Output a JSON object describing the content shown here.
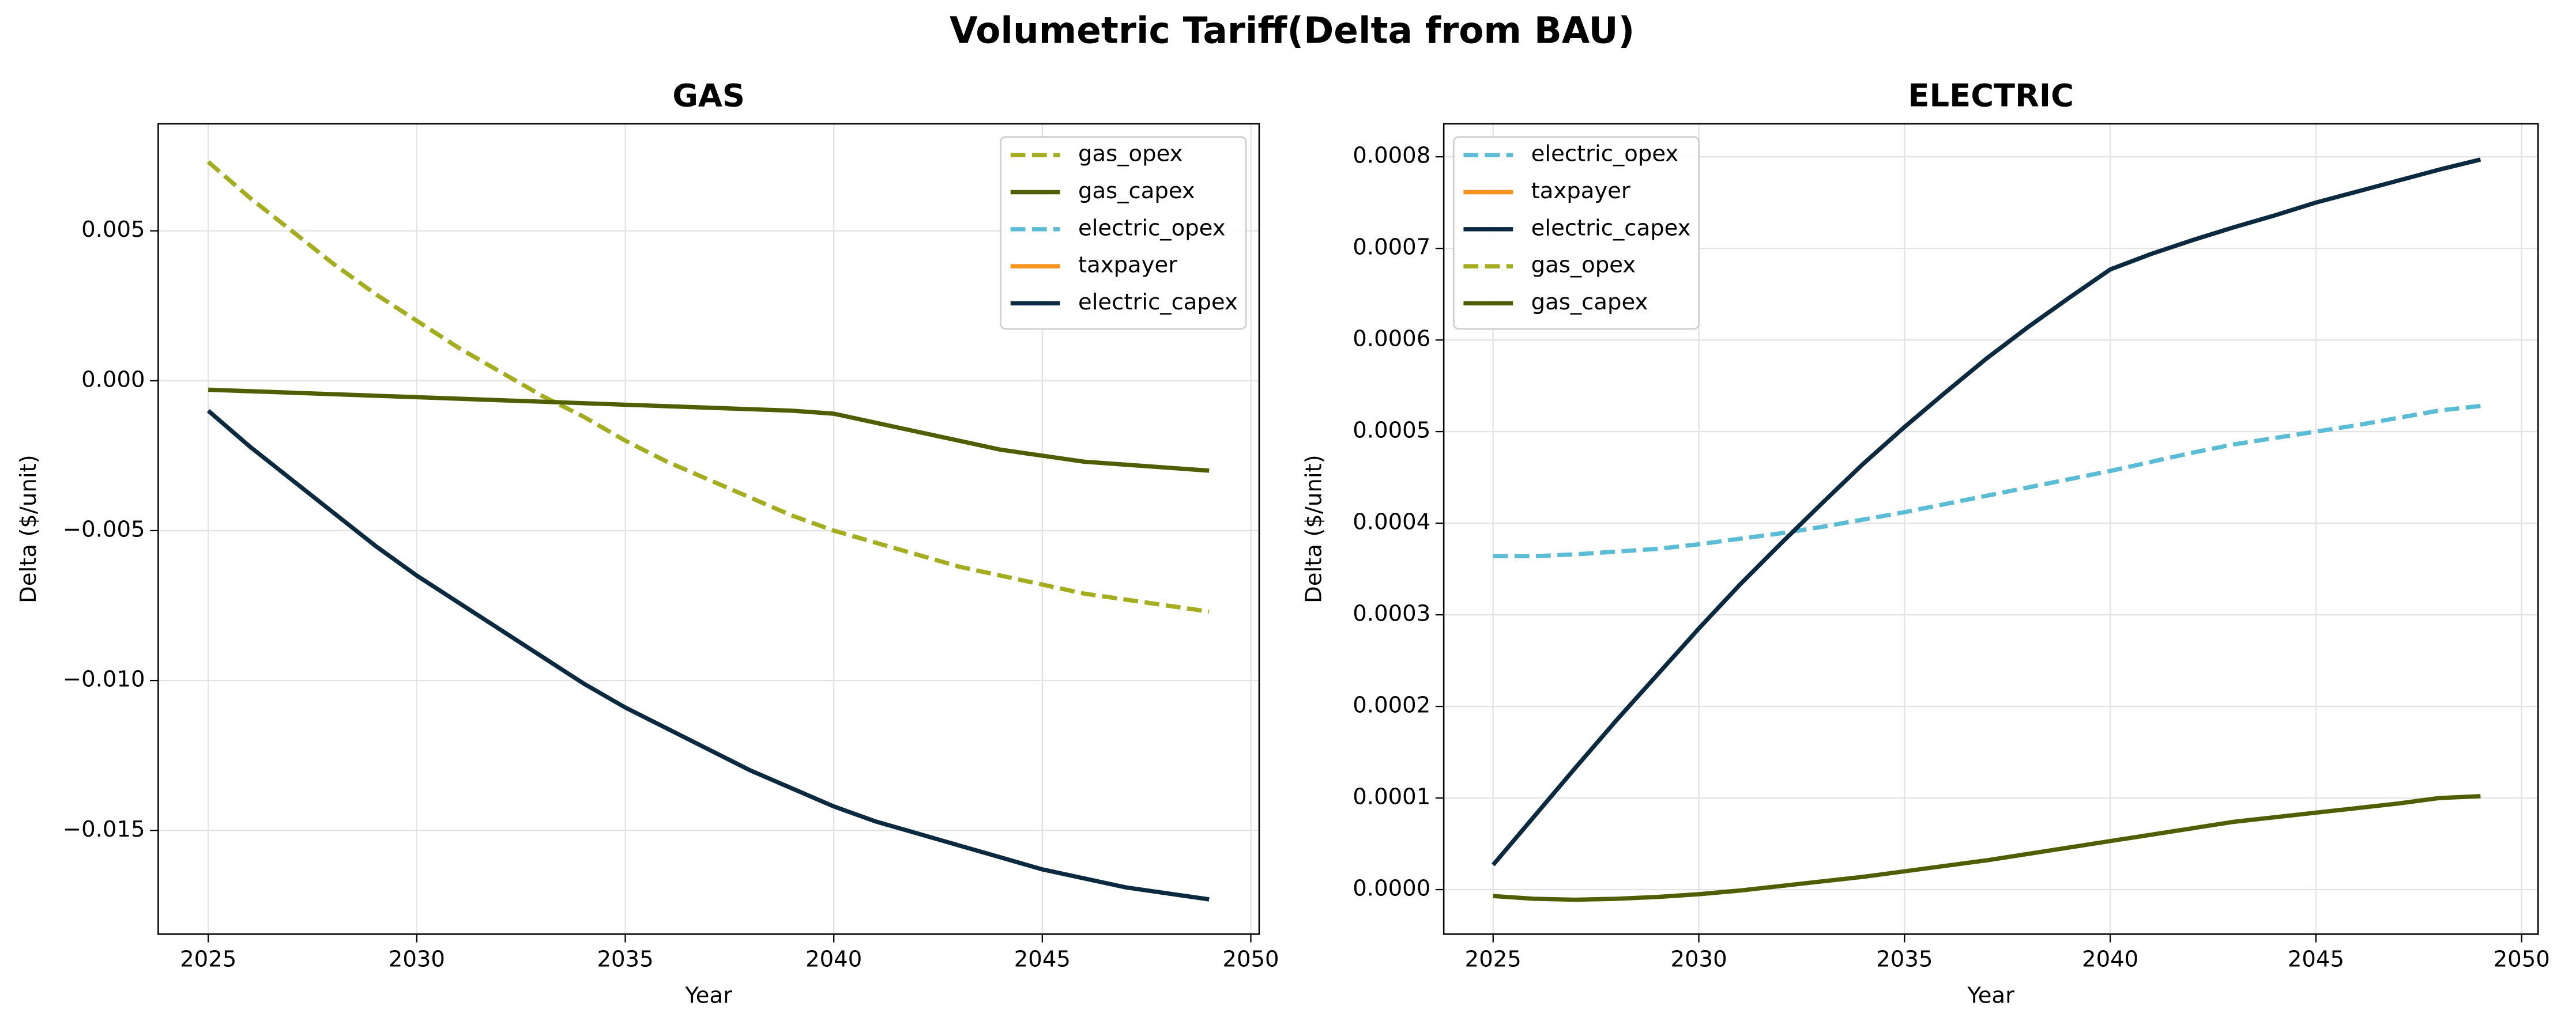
{
  "title": "Volumetric Tariff(Delta from BAU)",
  "chart_data": [
    {
      "type": "line",
      "title": "GAS",
      "xlabel": "Year",
      "ylabel": "Delta ($/unit)",
      "grid": true,
      "legend": "upper right",
      "x": [
        2025,
        2026,
        2027,
        2028,
        2029,
        2030,
        2031,
        2032,
        2033,
        2034,
        2035,
        2036,
        2037,
        2038,
        2039,
        2040,
        2041,
        2042,
        2043,
        2044,
        2045,
        2046,
        2047,
        2048,
        2049
      ],
      "xlim": [
        2023.8,
        2050.2
      ],
      "xticks": [
        2025,
        2030,
        2035,
        2040,
        2045,
        2050
      ],
      "ylim": [
        -0.01846,
        0.00857
      ],
      "yticks": [
        {
          "value": -0.015,
          "label": "−0.015"
        },
        {
          "value": -0.01,
          "label": "−0.010"
        },
        {
          "value": -0.005,
          "label": "−0.005"
        },
        {
          "value": 0,
          "label": "0.000"
        },
        0.005
      ],
      "series": [
        {
          "name": "gas_opex",
          "color": "#a3ad1e",
          "linestyle": "dashed",
          "values": [
            0.0073,
            0.0061,
            0.005,
            0.0039,
            0.0029,
            0.002,
            0.0011,
            0.0003,
            -0.0005,
            -0.0012,
            -0.002,
            -0.0027,
            -0.0033,
            -0.0039,
            -0.0045,
            -0.005,
            -0.0054,
            -0.0058,
            -0.0062,
            -0.0065,
            -0.0068,
            -0.0071,
            -0.0073,
            -0.0075,
            -0.0077
          ]
        },
        {
          "name": "gas_capex",
          "color": "#4f5e00",
          "linestyle": "solid",
          "values": [
            -0.0003,
            -0.00035,
            -0.0004,
            -0.00045,
            -0.0005,
            -0.00055,
            -0.0006,
            -0.00065,
            -0.0007,
            -0.00075,
            -0.0008,
            -0.00085,
            -0.0009,
            -0.00095,
            -0.001,
            -0.0011,
            -0.0014,
            -0.0017,
            -0.002,
            -0.0023,
            -0.0025,
            -0.0027,
            -0.0028,
            -0.0029,
            -0.003
          ]
        },
        {
          "name": "electric_opex",
          "color": "#5bbcd6",
          "linestyle": "dashed",
          "values": [
            null,
            null,
            null,
            null,
            null,
            null,
            null,
            null,
            null,
            null,
            null,
            null,
            null,
            null,
            null,
            null,
            null,
            null,
            null,
            null,
            null,
            null,
            null,
            null,
            null
          ]
        },
        {
          "name": "taxpayer",
          "color": "#f7941d",
          "linestyle": "solid",
          "values": [
            null,
            null,
            null,
            null,
            null,
            null,
            null,
            null,
            null,
            null,
            null,
            null,
            null,
            null,
            null,
            null,
            null,
            null,
            null,
            null,
            null,
            null,
            null,
            null,
            null
          ]
        },
        {
          "name": "electric_capex",
          "color": "#0b2a3f",
          "linestyle": "solid",
          "values": [
            -0.001,
            -0.0022,
            -0.0033,
            -0.0044,
            -0.0055,
            -0.0065,
            -0.0074,
            -0.0083,
            -0.0092,
            -0.0101,
            -0.0109,
            -0.0116,
            -0.0123,
            -0.013,
            -0.0136,
            -0.0142,
            -0.0147,
            -0.0151,
            -0.0155,
            -0.0159,
            -0.0163,
            -0.0166,
            -0.0169,
            -0.0171,
            -0.0173
          ]
        }
      ]
    },
    {
      "type": "line",
      "title": "ELECTRIC",
      "xlabel": "Year",
      "ylabel": "Delta ($/unit)",
      "grid": true,
      "legend": "upper left",
      "x": [
        2025,
        2026,
        2027,
        2028,
        2029,
        2030,
        2031,
        2032,
        2033,
        2034,
        2035,
        2036,
        2037,
        2038,
        2039,
        2040,
        2041,
        2042,
        2043,
        2044,
        2045,
        2046,
        2047,
        2048,
        2049
      ],
      "xlim": [
        2023.8,
        2050.4
      ],
      "xticks": [
        2025,
        2030,
        2035,
        2040,
        2045,
        2050
      ],
      "ylim": [
        -4.86e-05,
        0.000836
      ],
      "yticks": [
        {
          "value": 0,
          "label": "0.0000"
        },
        0.0001,
        0.0002,
        0.0003,
        0.0004,
        0.0005,
        0.0006,
        0.0007,
        0.0008
      ],
      "series": [
        {
          "name": "electric_opex",
          "color": "#5bbcd6",
          "linestyle": "dashed",
          "values": [
            0.000364,
            0.000364,
            0.000366,
            0.000369,
            0.000372,
            0.000377,
            0.000383,
            0.000389,
            0.000396,
            0.000404,
            0.000412,
            0.000421,
            0.00043,
            0.000439,
            0.000448,
            0.000457,
            0.000467,
            0.000477,
            0.000486,
            0.000493,
            0.0005,
            0.000507,
            0.000515,
            0.000523,
            0.000528
          ]
        },
        {
          "name": "taxpayer",
          "color": "#f7941d",
          "linestyle": "solid",
          "values": [
            null,
            null,
            null,
            null,
            null,
            null,
            null,
            null,
            null,
            null,
            null,
            null,
            null,
            null,
            null,
            null,
            null,
            null,
            null,
            null,
            null,
            null,
            null,
            null,
            null
          ]
        },
        {
          "name": "electric_capex",
          "color": "#0b2a3f",
          "linestyle": "solid",
          "values": [
            2.7e-05,
            8e-05,
            0.000133,
            0.000185,
            0.000235,
            0.000285,
            0.000333,
            0.000378,
            0.000422,
            0.000465,
            0.000505,
            0.000543,
            0.00058,
            0.000614,
            0.000646,
            0.000677,
            0.000694,
            0.000709,
            0.000723,
            0.000736,
            0.00075,
            0.000762,
            0.000774,
            0.000786,
            0.000797
          ]
        },
        {
          "name": "gas_opex",
          "color": "#a3ad1e",
          "linestyle": "dashed",
          "values": [
            null,
            null,
            null,
            null,
            null,
            null,
            null,
            null,
            null,
            null,
            null,
            null,
            null,
            null,
            null,
            null,
            null,
            null,
            null,
            null,
            null,
            null,
            null,
            null,
            null
          ]
        },
        {
          "name": "gas_capex",
          "color": "#4f5e00",
          "linestyle": "solid",
          "values": [
            -7e-06,
            -1e-05,
            -1.1e-05,
            -1e-05,
            -8e-06,
            -5e-06,
            -1e-06,
            4e-06,
            9e-06,
            1.4e-05,
            2e-05,
            2.6e-05,
            3.2e-05,
            3.9e-05,
            4.6e-05,
            5.3e-05,
            6e-05,
            6.7e-05,
            7.4e-05,
            7.9e-05,
            8.4e-05,
            8.9e-05,
            9.4e-05,
            0.0001,
            0.000102
          ]
        }
      ]
    }
  ]
}
